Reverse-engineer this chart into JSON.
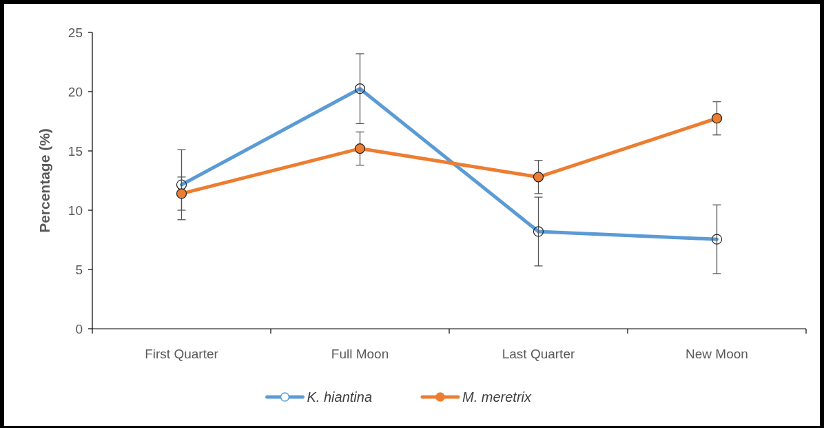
{
  "chart_data": {
    "type": "line",
    "ylabel": "Percentage (%)",
    "categories": [
      "First Quarter",
      "Full Moon",
      "Last Quarter",
      "New Moon"
    ],
    "series": [
      {
        "name": "K. hiantina",
        "color": "#5b9bd5",
        "values": [
          12.15,
          20.25,
          8.2,
          7.55
        ],
        "errors": [
          2.95,
          2.95,
          2.9,
          2.9
        ],
        "marker": "circle"
      },
      {
        "name": "M. meretrix",
        "color": "#ed7d31",
        "values": [
          11.4,
          15.2,
          12.8,
          17.75
        ],
        "errors": [
          1.4,
          1.4,
          1.4,
          1.4
        ],
        "marker": "circle"
      }
    ],
    "ylim": [
      0,
      25
    ],
    "yticks": [
      0,
      5,
      10,
      15,
      20,
      25
    ],
    "grid": false,
    "legend": "bottom",
    "line_style": "solid"
  }
}
